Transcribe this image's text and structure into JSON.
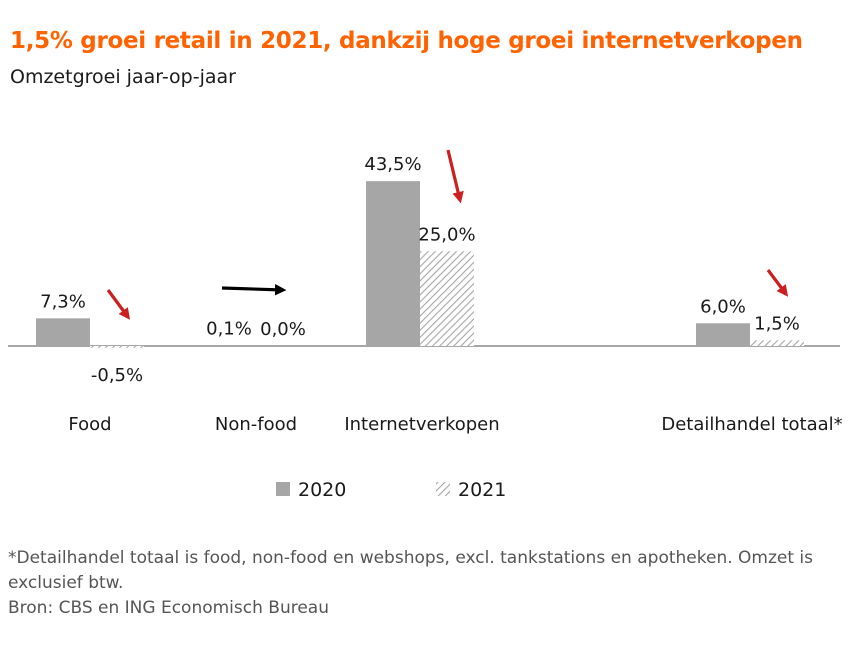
{
  "title": "1,5% groei retail in 2021, dankzij hoge groei internetverkopen",
  "subtitle": "Omzetgroei jaar-op-jaar",
  "footnote": "*Detailhandel totaal is food, non-food en webshops, excl. tankstations en apotheken. Omzet is exclusief btw.",
  "source": "Bron: CBS en ING Economisch Bureau",
  "colors": {
    "accent": "#ff6200",
    "bar2020": "#a6a6a6",
    "hatch2021": "#a6a6a6",
    "arrow_down": "#cc1f1f",
    "arrow_flat": "#000000"
  },
  "chart_data": {
    "type": "bar",
    "categories": [
      "Food",
      "Non-food",
      "Internetverkopen",
      "Detailhandel totaal*"
    ],
    "series": [
      {
        "name": "2020",
        "values": [
          7.3,
          0.1,
          43.5,
          6.0
        ],
        "labels": [
          "7,3%",
          "0,1%",
          "43,5%",
          "6,0%"
        ],
        "style": "solid"
      },
      {
        "name": "2021",
        "values": [
          -0.5,
          0.0,
          25.0,
          1.5
        ],
        "labels": [
          "-0,5%",
          "0,0%",
          "25,0%",
          "1,5%"
        ],
        "style": "hatched"
      }
    ],
    "annotations": [
      {
        "category": "Food",
        "arrow": "down"
      },
      {
        "category": "Non-food",
        "arrow": "flat"
      },
      {
        "category": "Internetverkopen",
        "arrow": "down"
      },
      {
        "category": "Detailhandel totaal*",
        "arrow": "down"
      }
    ],
    "legend_position": "bottom",
    "grid": false
  }
}
